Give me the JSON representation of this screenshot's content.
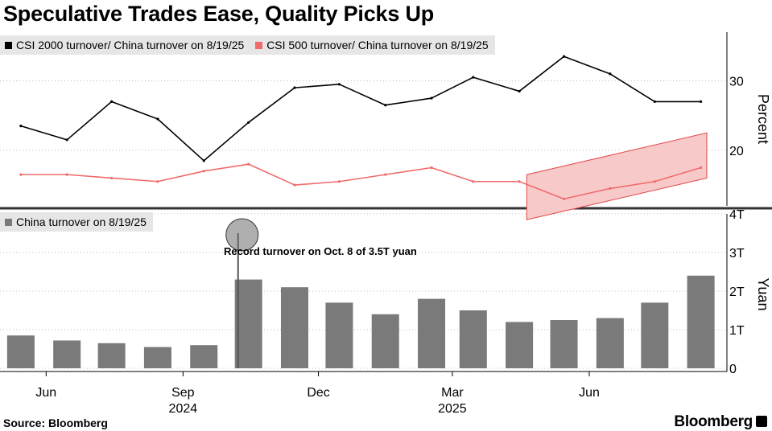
{
  "title": "Speculative Trades Ease, Quality Picks Up",
  "source": "Source: Bloomberg",
  "brand": "Bloomberg",
  "colors": {
    "csi2000": "#000000",
    "csi500": "#f06b6b",
    "bars": "#7a7a7a",
    "highlight": "#f8c9c9"
  },
  "chart_data": [
    {
      "type": "line",
      "ylabel": "Percent",
      "ylim": [
        12,
        37
      ],
      "yticks": [
        "20",
        "30"
      ],
      "yticks_values": [
        20,
        30
      ],
      "legend_placement": "top-left",
      "x": [
        "2024-05",
        "2024-06",
        "2024-07",
        "2024-08",
        "2024-09",
        "2024-10",
        "2024-11",
        "2024-12",
        "2025-01",
        "2025-02",
        "2025-03",
        "2025-04",
        "2025-05",
        "2025-06",
        "2025-07",
        "2025-08"
      ],
      "series": [
        {
          "name": "CSI 2000 turnover/ China turnover on 8/19/25",
          "values": [
            23.5,
            21.5,
            27.0,
            24.5,
            18.5,
            24.0,
            29.0,
            29.5,
            26.5,
            27.5,
            30.5,
            28.5,
            33.5,
            31.0,
            27.0,
            27.0
          ]
        },
        {
          "name": "CSI 500 turnover/ China turnover on 8/19/25",
          "values": [
            16.5,
            16.5,
            16.0,
            15.5,
            17.0,
            18.0,
            15.0,
            15.5,
            16.5,
            17.5,
            15.5,
            15.5,
            13.0,
            14.5,
            15.5,
            17.5
          ]
        }
      ]
    },
    {
      "type": "bar",
      "ylabel": "Yuan",
      "ylim": [
        0,
        4
      ],
      "yticks": [
        "0",
        "1T",
        "2T",
        "3T",
        "4T"
      ],
      "yticks_values": [
        0,
        1,
        2,
        3,
        4
      ],
      "legend_placement": "top-left",
      "x": [
        "2024-05",
        "2024-06",
        "2024-07",
        "2024-08",
        "2024-09",
        "2024-10",
        "2024-11",
        "2024-12",
        "2025-01",
        "2025-02",
        "2025-03",
        "2025-04",
        "2025-05",
        "2025-06",
        "2025-07",
        "2025-08"
      ],
      "series": [
        {
          "name": "China turnover on 8/19/25",
          "values": [
            0.85,
            0.72,
            0.65,
            0.55,
            0.6,
            2.3,
            2.1,
            1.7,
            1.4,
            1.8,
            1.5,
            1.2,
            1.25,
            1.3,
            1.7,
            2.4
          ]
        }
      ],
      "annotation": {
        "text": "Record turnover on Oct. 8 of 3.5T yuan",
        "date": "2024-10-08",
        "value": 3.5
      }
    }
  ],
  "x_axis": {
    "month_labels": [
      "Jun",
      "Sep",
      "Dec",
      "Mar",
      "Jun"
    ],
    "month_dates": [
      "2024-06-01",
      "2024-09-01",
      "2024-12-01",
      "2025-03-01",
      "2025-06-01"
    ],
    "year_labels": [
      "2024",
      "2025"
    ],
    "year_dates": [
      "2024-09-01",
      "2025-03-01"
    ]
  }
}
